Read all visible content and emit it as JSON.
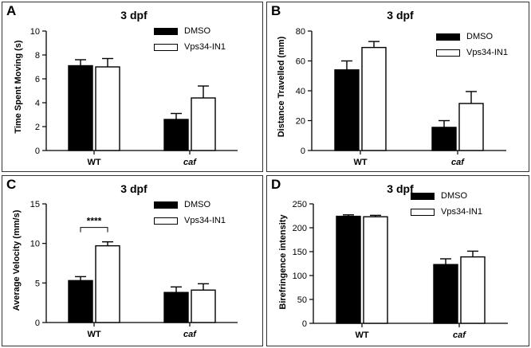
{
  "chart_data": [
    {
      "panel": "A",
      "type": "bar",
      "title": "3 dpf",
      "ylabel": "Time Spent Moving (s)",
      "xlabel": "",
      "categories": [
        "WT",
        "caf"
      ],
      "category_italic": [
        false,
        true
      ],
      "ylim": [
        0,
        10
      ],
      "yticks": [
        0,
        2,
        4,
        6,
        8,
        10
      ],
      "series": [
        {
          "name": "DMSO",
          "values": [
            7.1,
            2.6
          ],
          "errors": [
            0.5,
            0.5
          ],
          "color": "#000000"
        },
        {
          "name": "Vps34-IN1",
          "values": [
            7.0,
            4.4
          ],
          "errors": [
            0.7,
            1.0
          ],
          "color": "#ffffff"
        }
      ],
      "significance": null
    },
    {
      "panel": "B",
      "type": "bar",
      "title": "3 dpf",
      "ylabel": "Distance Travelled (mm)",
      "xlabel": "",
      "categories": [
        "WT",
        "caf"
      ],
      "category_italic": [
        false,
        true
      ],
      "ylim": [
        0,
        80
      ],
      "yticks": [
        0,
        20,
        40,
        60,
        80
      ],
      "series": [
        {
          "name": "DMSO",
          "values": [
            54,
            15.5
          ],
          "errors": [
            6,
            4.5
          ],
          "color": "#000000"
        },
        {
          "name": "Vps34-IN1",
          "values": [
            69,
            31.5
          ],
          "errors": [
            4,
            8
          ],
          "color": "#ffffff"
        }
      ],
      "significance": null
    },
    {
      "panel": "C",
      "type": "bar",
      "title": "3 dpf",
      "ylabel": "Average Velocity (mm/s)",
      "xlabel": "",
      "categories": [
        "WT",
        "caf"
      ],
      "category_italic": [
        false,
        true
      ],
      "ylim": [
        0,
        15
      ],
      "yticks": [
        0,
        5,
        10,
        15
      ],
      "series": [
        {
          "name": "DMSO",
          "values": [
            5.3,
            3.8
          ],
          "errors": [
            0.5,
            0.7
          ],
          "color": "#000000"
        },
        {
          "name": "Vps34-IN1",
          "values": [
            9.7,
            4.1
          ],
          "errors": [
            0.5,
            0.8
          ],
          "color": "#ffffff"
        }
      ],
      "significance": {
        "label": "****",
        "category": "WT"
      }
    },
    {
      "panel": "D",
      "type": "bar",
      "title": "3 dpf",
      "ylabel": "Birefringence intensity",
      "xlabel": "",
      "categories": [
        "WT",
        "caf"
      ],
      "category_italic": [
        false,
        true
      ],
      "ylim": [
        0,
        250
      ],
      "yticks": [
        0,
        50,
        100,
        150,
        200,
        250
      ],
      "series": [
        {
          "name": "DMSO",
          "values": [
            224,
            123
          ],
          "errors": [
            3,
            12
          ],
          "color": "#000000"
        },
        {
          "name": "Vps34-IN1",
          "values": [
            223,
            139
          ],
          "errors": [
            3,
            12
          ],
          "color": "#ffffff"
        }
      ],
      "significance": null
    }
  ]
}
